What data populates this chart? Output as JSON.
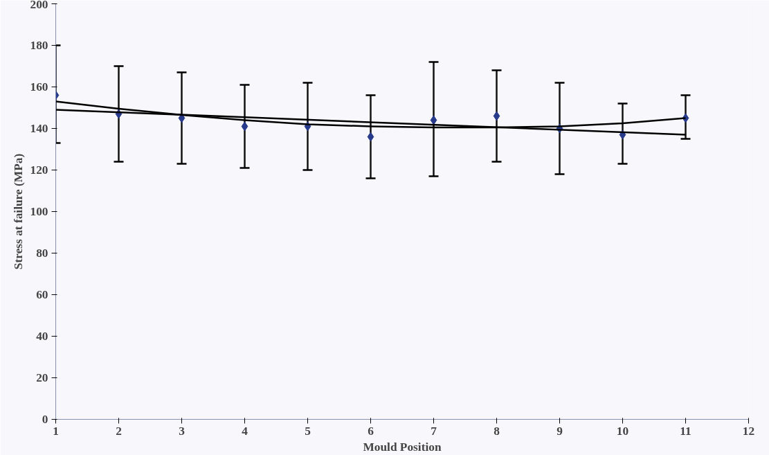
{
  "chart_data": {
    "type": "scatter",
    "xlabel": "Mould Position",
    "ylabel": "Stress at failure (MPa)",
    "xlim": [
      1,
      12
    ],
    "xticks": [
      1,
      2,
      3,
      4,
      5,
      6,
      7,
      8,
      9,
      10,
      11,
      12
    ],
    "ylim": [
      0,
      200
    ],
    "yticks": [
      0,
      20,
      40,
      60,
      80,
      100,
      120,
      140,
      160,
      180,
      200
    ],
    "grid": false,
    "marker": "diamond",
    "series": [
      {
        "color": "#283a8c",
        "x": [
          1,
          2,
          3,
          4,
          5,
          6,
          7,
          8,
          9,
          10,
          11
        ],
        "values": [
          156,
          147,
          145,
          141,
          141,
          136,
          144,
          146,
          140,
          137,
          145
        ],
        "errors": [
          [
            133,
            180
          ],
          [
            124,
            170
          ],
          [
            123,
            167
          ],
          [
            121,
            161
          ],
          [
            120,
            162
          ],
          [
            116,
            156
          ],
          [
            117,
            172
          ],
          [
            124,
            168
          ],
          [
            118,
            162
          ],
          [
            123,
            152
          ],
          [
            135,
            156
          ]
        ]
      },
      {
        "type": "line",
        "color": "#000000",
        "x": [
          1,
          11
        ],
        "values": [
          149,
          137
        ],
        "marker": "none"
      },
      {
        "type": "line",
        "color": "#000000",
        "x": [
          1,
          2,
          3,
          4,
          5,
          6,
          7,
          8,
          9,
          10,
          11
        ],
        "values": [
          153,
          149.5,
          146.5,
          144,
          142,
          141,
          140.5,
          140.5,
          141,
          142.5,
          145
        ],
        "marker": "none"
      }
    ]
  }
}
